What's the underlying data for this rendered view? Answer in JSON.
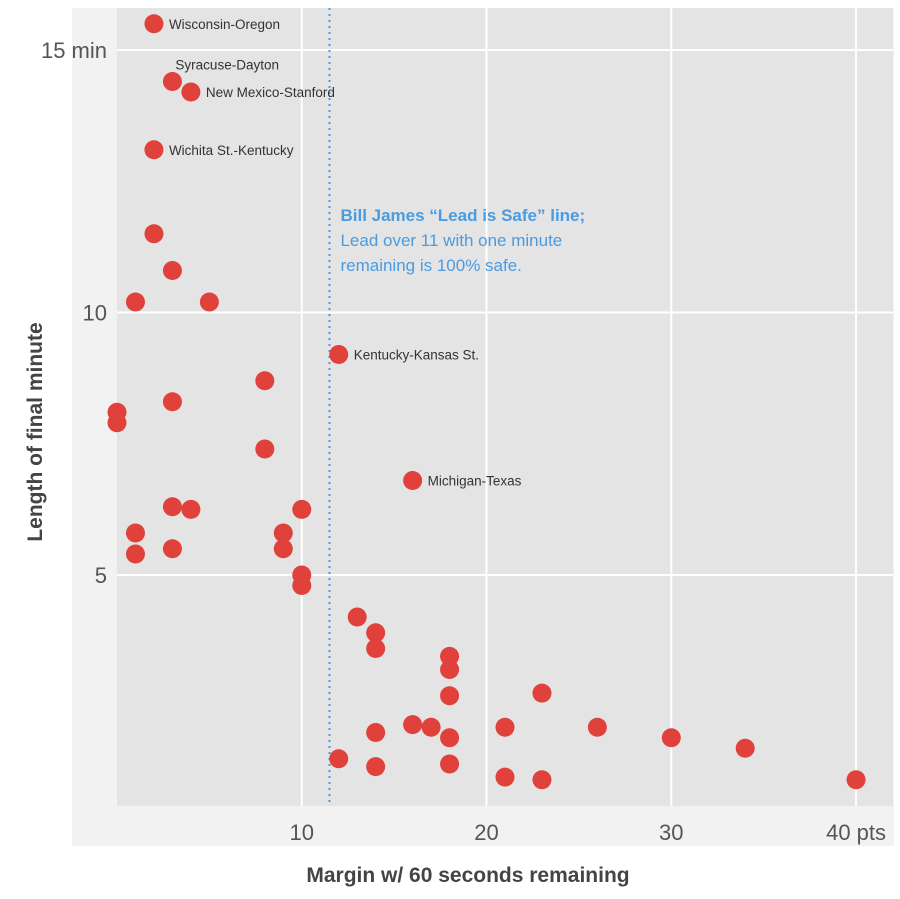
{
  "chart_data": {
    "type": "scatter",
    "xlabel": "Margin w/ 60 seconds remaining",
    "ylabel": "Length of final  minute",
    "xlim": [
      0,
      42
    ],
    "ylim": [
      0.6,
      15.8
    ],
    "x_ticks": [
      {
        "value": 10,
        "label": "10"
      },
      {
        "value": 20,
        "label": "20"
      },
      {
        "value": 30,
        "label": "30"
      },
      {
        "value": 40,
        "label": "40 pts"
      }
    ],
    "y_ticks": [
      {
        "value": 5,
        "label": "5"
      },
      {
        "value": 10,
        "label": "10"
      },
      {
        "value": 15,
        "label": "15 min"
      }
    ],
    "point_color": "#e0413a",
    "reference_line": {
      "x": 11.5,
      "color": "#4a9be0",
      "title": "Bill James “Lead is Safe” line;",
      "lines": [
        "Lead over 11 with one minute",
        "remaining is 100% safe."
      ]
    },
    "points": [
      {
        "x": 2,
        "y": 15.5,
        "label": "Wisconsin-Oregon"
      },
      {
        "x": 3,
        "y": 14.4,
        "label": "Syracuse-Dayton"
      },
      {
        "x": 4,
        "y": 14.2,
        "label": "New Mexico-Stanford"
      },
      {
        "x": 2,
        "y": 13.1,
        "label": "Wichita St.-Kentucky"
      },
      {
        "x": 2,
        "y": 11.5
      },
      {
        "x": 3,
        "y": 10.8
      },
      {
        "x": 1,
        "y": 10.2
      },
      {
        "x": 5,
        "y": 10.2
      },
      {
        "x": 12,
        "y": 9.2,
        "label": "Kentucky-Kansas St."
      },
      {
        "x": 8,
        "y": 8.7
      },
      {
        "x": 3,
        "y": 8.3
      },
      {
        "x": 0,
        "y": 8.1
      },
      {
        "x": 0,
        "y": 7.9
      },
      {
        "x": 8,
        "y": 7.4
      },
      {
        "x": 16,
        "y": 6.8,
        "label": "Michigan-Texas"
      },
      {
        "x": 3,
        "y": 6.3
      },
      {
        "x": 4,
        "y": 6.25
      },
      {
        "x": 10,
        "y": 6.25
      },
      {
        "x": 1,
        "y": 5.8
      },
      {
        "x": 9,
        "y": 5.8
      },
      {
        "x": 1,
        "y": 5.4
      },
      {
        "x": 3,
        "y": 5.5
      },
      {
        "x": 9,
        "y": 5.5
      },
      {
        "x": 10,
        "y": 5.0
      },
      {
        "x": 10,
        "y": 4.8
      },
      {
        "x": 13,
        "y": 4.2
      },
      {
        "x": 14,
        "y": 3.9
      },
      {
        "x": 14,
        "y": 3.6
      },
      {
        "x": 18,
        "y": 3.45
      },
      {
        "x": 18,
        "y": 3.2
      },
      {
        "x": 18,
        "y": 2.7
      },
      {
        "x": 23,
        "y": 2.75
      },
      {
        "x": 16,
        "y": 2.15
      },
      {
        "x": 17,
        "y": 2.1
      },
      {
        "x": 21,
        "y": 2.1
      },
      {
        "x": 26,
        "y": 2.1
      },
      {
        "x": 14,
        "y": 2.0
      },
      {
        "x": 18,
        "y": 1.9
      },
      {
        "x": 30,
        "y": 1.9
      },
      {
        "x": 34,
        "y": 1.7
      },
      {
        "x": 12,
        "y": 1.5
      },
      {
        "x": 14,
        "y": 1.35
      },
      {
        "x": 18,
        "y": 1.4
      },
      {
        "x": 21,
        "y": 1.15
      },
      {
        "x": 23,
        "y": 1.1
      },
      {
        "x": 40,
        "y": 1.1
      }
    ]
  }
}
